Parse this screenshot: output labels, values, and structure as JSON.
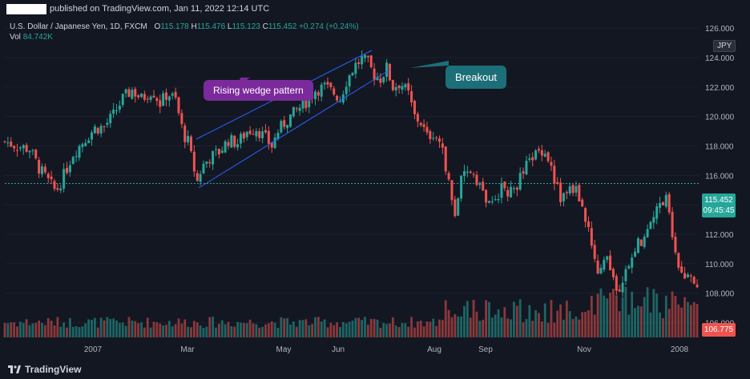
{
  "header": {
    "published_text": "published on TradingView.com, Jan 11, 2022 12:14 UTC"
  },
  "legend": {
    "symbol": "U.S. Dollar / Japanese Yen, 1D, FXCM",
    "o_label": "O",
    "o_val": "115.178",
    "h_label": "H",
    "h_val": "115.476",
    "l_label": "L",
    "l_val": "115.123",
    "c_label": "C",
    "c_val": "115.452",
    "change": "+0.274 (+0.24%)",
    "vol_label": "Vol",
    "vol_val": "84.742K"
  },
  "annotations": {
    "wedge_label": "Rising wedge pattern",
    "breakout_label": "Breakout"
  },
  "price_axis": {
    "currency_button": "JPY",
    "last_price": "115.452",
    "countdown": "09:45:45",
    "red_label": "106.775"
  },
  "footer": {
    "brand": "TradingView"
  },
  "colors": {
    "background": "#131722",
    "up": "#26a69a",
    "down": "#ef5350",
    "trendline": "#2962ff",
    "wedge_callout": "#7b2a9c",
    "breakout_callout": "#1c6f78"
  },
  "chart_data": {
    "type": "candlestick",
    "title": "U.S. Dollar / Japanese Yen, 1D, FXCM",
    "x_tick_labels": [
      "2007",
      "Mar",
      "May",
      "Jun",
      "Aug",
      "Sep",
      "Nov",
      "2008"
    ],
    "y_ticks": [
      106,
      108,
      110,
      112,
      114,
      116,
      118,
      120,
      122,
      124,
      126
    ],
    "y_tick_labels": [
      "106.000",
      "108.000",
      "110.000",
      "112.000",
      "114.000",
      "116.000",
      "118.000",
      "120.000",
      "122.000",
      "124.000",
      "126.000"
    ],
    "ylim": [
      105,
      126.5
    ],
    "current_price_line": 115.452,
    "close_path": [
      {
        "d": 0,
        "c": 118.3
      },
      {
        "d": 8,
        "c": 118.0
      },
      {
        "d": 16,
        "c": 117.8
      },
      {
        "d": 22,
        "c": 116.5
      },
      {
        "d": 28,
        "c": 115.6
      },
      {
        "d": 33,
        "c": 114.9
      },
      {
        "d": 38,
        "c": 116.0
      },
      {
        "d": 44,
        "c": 117.5
      },
      {
        "d": 52,
        "c": 118.5
      },
      {
        "d": 58,
        "c": 119.2
      },
      {
        "d": 64,
        "c": 119.3
      },
      {
        "d": 70,
        "c": 120.1
      },
      {
        "d": 76,
        "c": 121.2
      },
      {
        "d": 82,
        "c": 121.8
      },
      {
        "d": 88,
        "c": 121.2
      },
      {
        "d": 95,
        "c": 121.8
      },
      {
        "d": 100,
        "c": 120.9
      },
      {
        "d": 105,
        "c": 121.6
      },
      {
        "d": 110,
        "c": 121.1
      },
      {
        "d": 115,
        "c": 118.8
      },
      {
        "d": 118,
        "c": 118.3
      },
      {
        "d": 121,
        "c": 116.8
      },
      {
        "d": 124,
        "c": 115.6
      },
      {
        "d": 127,
        "c": 116.6
      },
      {
        "d": 132,
        "c": 117.2
      },
      {
        "d": 138,
        "c": 117.6
      },
      {
        "d": 144,
        "c": 118.4
      },
      {
        "d": 150,
        "c": 118.2
      },
      {
        "d": 156,
        "c": 119.0
      },
      {
        "d": 162,
        "c": 119.2
      },
      {
        "d": 168,
        "c": 118.5
      },
      {
        "d": 172,
        "c": 118.0
      },
      {
        "d": 176,
        "c": 119.0
      },
      {
        "d": 182,
        "c": 119.8
      },
      {
        "d": 188,
        "c": 120.4
      },
      {
        "d": 194,
        "c": 121.0
      },
      {
        "d": 200,
        "c": 121.8
      },
      {
        "d": 206,
        "c": 122.0
      },
      {
        "d": 212,
        "c": 121.6
      },
      {
        "d": 216,
        "c": 121.2
      },
      {
        "d": 220,
        "c": 122.4
      },
      {
        "d": 225,
        "c": 123.4
      },
      {
        "d": 230,
        "c": 123.9
      },
      {
        "d": 234,
        "c": 123.6
      },
      {
        "d": 238,
        "c": 122.8
      },
      {
        "d": 242,
        "c": 122.6
      },
      {
        "d": 246,
        "c": 123.3
      },
      {
        "d": 250,
        "c": 122.0
      },
      {
        "d": 255,
        "c": 122.3
      },
      {
        "d": 260,
        "c": 121.5
      },
      {
        "d": 264,
        "c": 120.0
      },
      {
        "d": 268,
        "c": 119.6
      },
      {
        "d": 272,
        "c": 118.6
      },
      {
        "d": 276,
        "c": 118.9
      },
      {
        "d": 280,
        "c": 118.3
      },
      {
        "d": 284,
        "c": 116.7
      },
      {
        "d": 287,
        "c": 114.9
      },
      {
        "d": 290,
        "c": 113.2
      },
      {
        "d": 293,
        "c": 115.4
      },
      {
        "d": 297,
        "c": 116.0
      },
      {
        "d": 301,
        "c": 116.4
      },
      {
        "d": 305,
        "c": 115.6
      },
      {
        "d": 309,
        "c": 114.6
      },
      {
        "d": 313,
        "c": 113.7
      },
      {
        "d": 317,
        "c": 114.7
      },
      {
        "d": 321,
        "c": 115.2
      },
      {
        "d": 326,
        "c": 114.8
      },
      {
        "d": 331,
        "c": 115.6
      },
      {
        "d": 336,
        "c": 116.6
      },
      {
        "d": 341,
        "c": 117.4
      },
      {
        "d": 346,
        "c": 117.8
      },
      {
        "d": 350,
        "c": 117.2
      },
      {
        "d": 354,
        "c": 115.8
      },
      {
        "d": 358,
        "c": 114.4
      },
      {
        "d": 362,
        "c": 114.9
      },
      {
        "d": 367,
        "c": 115.2
      },
      {
        "d": 371,
        "c": 114.3
      },
      {
        "d": 375,
        "c": 112.6
      },
      {
        "d": 379,
        "c": 110.6
      },
      {
        "d": 383,
        "c": 109.3
      },
      {
        "d": 387,
        "c": 110.4
      },
      {
        "d": 391,
        "c": 109.3
      },
      {
        "d": 395,
        "c": 108.3
      },
      {
        "d": 399,
        "c": 109.3
      },
      {
        "d": 403,
        "c": 110.4
      },
      {
        "d": 407,
        "c": 111.2
      },
      {
        "d": 411,
        "c": 111.8
      },
      {
        "d": 415,
        "c": 113.0
      },
      {
        "d": 419,
        "c": 113.6
      },
      {
        "d": 423,
        "c": 114.1
      },
      {
        "d": 426,
        "c": 114.6
      },
      {
        "d": 429,
        "c": 113.0
      },
      {
        "d": 432,
        "c": 110.6
      },
      {
        "d": 435,
        "c": 109.4
      },
      {
        "d": 438,
        "c": 108.6
      },
      {
        "d": 441,
        "c": 109.6
      },
      {
        "d": 444,
        "c": 108.9
      },
      {
        "d": 447,
        "c": 108.0
      }
    ]
  }
}
